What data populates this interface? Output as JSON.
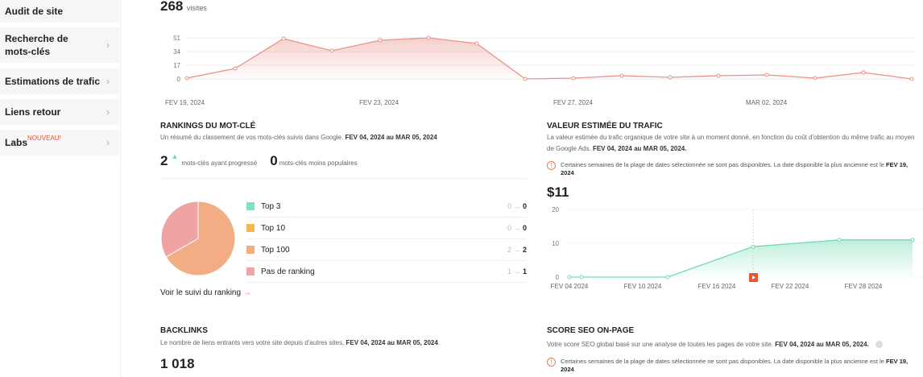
{
  "sidebar": {
    "items": [
      {
        "label": "Audit de site"
      },
      {
        "label": "Recherche de mots-clés"
      },
      {
        "label": "Estimations de trafic"
      },
      {
        "label": "Liens retour"
      },
      {
        "label": "Labs",
        "badge": "NOUVEAU!"
      }
    ]
  },
  "visits": {
    "value": "268",
    "unit": "visites"
  },
  "chart_data": [
    {
      "type": "area",
      "x": [
        "FEV 19, 2024",
        "FEV 20, 2024",
        "FEV 21, 2024",
        "FEV 22, 2024",
        "FEV 23, 2024",
        "FEV 24, 2024",
        "FEV 25, 2024",
        "FEV 26, 2024",
        "FEV 27, 2024",
        "FEV 28, 2024",
        "FEV 29, 2024",
        "MAR 01, 2024",
        "MAR 02, 2024",
        "MAR 03, 2024",
        "MAR 04, 2024",
        "MAR 05, 2024"
      ],
      "values": [
        1,
        13,
        50,
        35,
        48,
        51,
        44,
        0,
        1,
        4,
        2,
        4,
        5,
        1,
        8,
        0
      ],
      "yticks": [
        "0",
        "17",
        "34",
        "51"
      ],
      "ylim": [
        0,
        51
      ],
      "xtick_labels": [
        "FEV 19, 2024",
        "FEV 23, 2024",
        "FEV 27, 2024",
        "MAR 02, 2024"
      ],
      "color": "#e8948a",
      "grid": true
    },
    {
      "type": "area",
      "x": [
        "FEV 04 2024",
        "FEV 05 2024",
        "FEV 12 2024",
        "FEV 19 2024",
        "FEV 26 2024",
        "MAR 04 2024"
      ],
      "values": [
        0,
        0,
        0,
        9,
        11,
        11
      ],
      "yticks": [
        "0",
        "10",
        "20"
      ],
      "ylim": [
        0,
        20
      ],
      "xtick_labels": [
        "FEV 04 2024",
        "FEV 10 2024",
        "FEV 16 2024",
        "FEV 22 2024",
        "FEV 28 2024"
      ],
      "color": "#6fdcb0",
      "grid": true
    }
  ],
  "rankings": {
    "title": "RANKINGS DU MOT-CLÉ",
    "desc": "Un résumé du classement de vos mots-clés suivis dans Google.",
    "range": "FEV 04, 2024 au MAR 05, 2024",
    "progressed": {
      "value": "2",
      "label": "mots-clés ayant progressé"
    },
    "declined": {
      "value": "0",
      "label": "mots-clés moins populaires"
    },
    "legend": [
      {
        "label": "Top 3",
        "from": "0",
        "to": "0",
        "color": "#7fe3b9"
      },
      {
        "label": "Top 10",
        "from": "0",
        "to": "0",
        "color": "#f5b94a"
      },
      {
        "label": "Top 100",
        "from": "2",
        "to": "2",
        "color": "#f2ad84"
      },
      {
        "label": "Pas de ranking",
        "from": "1",
        "to": "1",
        "color": "#f0a3a3"
      }
    ],
    "arrow": "→",
    "link": "Voir le suivi du ranking"
  },
  "traffic_value": {
    "title": "VALEUR ESTIMÉE DU TRAFIC",
    "desc": "La valeur estimée du trafic organique de votre site à un moment donné, en fonction du coût d'obtention du même trafic au moyen de Google Ads.",
    "range": "FEV 04, 2024 au MAR 05, 2024.",
    "warning": "Certaines semaines de la plage de dates sélectionnée ne sont pas disponibles. La date disponible la plus ancienne est le",
    "warning_date": "FEV 19, 2024",
    "value": "$11"
  },
  "backlinks": {
    "title": "BACKLINKS",
    "desc": "Le nombre de liens entrants vers votre site depuis d'autres sites.",
    "range": "FEV 04, 2024 au MAR 05, 2024",
    "value": "1 018"
  },
  "seo_score": {
    "title": "SCORE SEO ON-PAGE",
    "desc": "Votre score SEO global basé sur une analyse de toutes les pages de votre site.",
    "range": "FEV 04, 2024 au MAR 05, 2024.",
    "warning": "Certaines semaines de la plage de dates sélectionnée ne sont pas disponibles. La date disponible la plus ancienne est le",
    "warning_date": "FEV 19, 2024"
  }
}
